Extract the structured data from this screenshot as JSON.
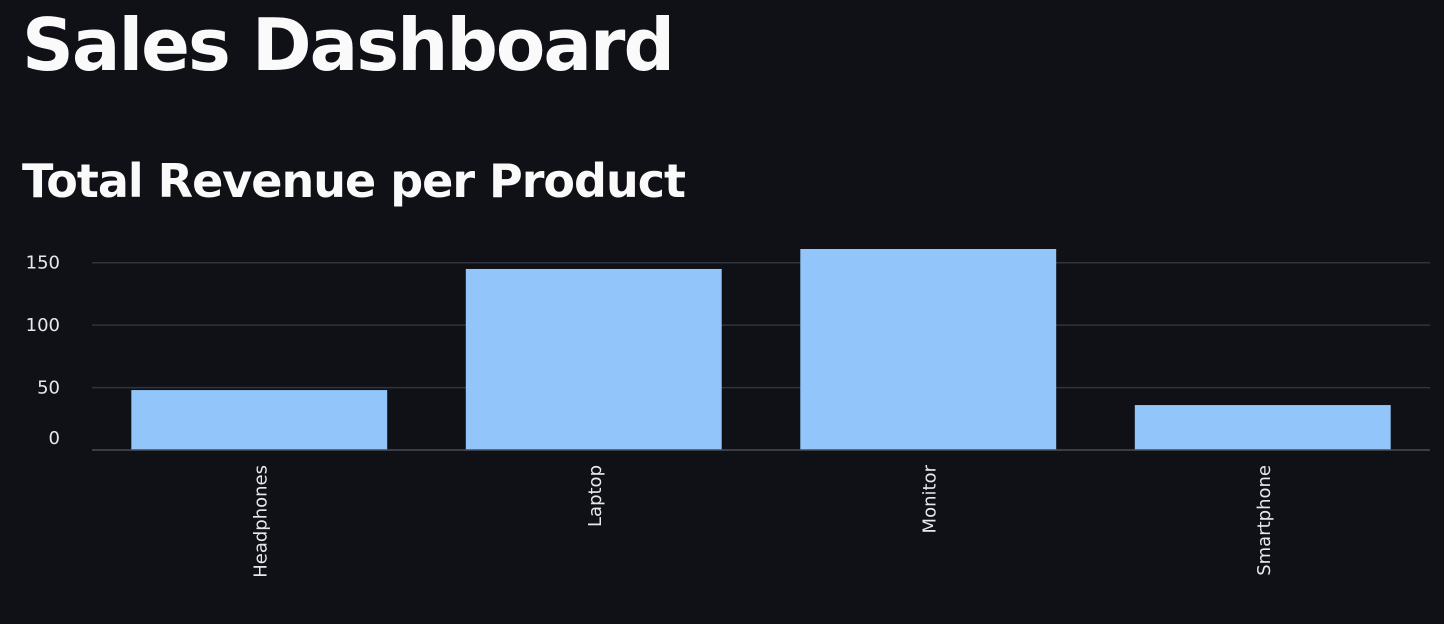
{
  "header": {
    "title": "Sales Dashboard"
  },
  "section": {
    "title": "Total Revenue per Product"
  },
  "colors": {
    "background": "#0f1117",
    "bar": "#92c5f9",
    "text": "#fafafa"
  },
  "chart_data": {
    "type": "bar",
    "title": "",
    "xlabel": "",
    "ylabel": "",
    "categories": [
      "Headphones",
      "Laptop",
      "Monitor",
      "Smartphone"
    ],
    "values": [
      48,
      145,
      161,
      36
    ],
    "ylim": [
      0,
      161
    ],
    "yticks": [
      0,
      50,
      100,
      150
    ],
    "ytick_labels": [
      "0",
      "50",
      "100",
      "150"
    ],
    "grid": true
  }
}
